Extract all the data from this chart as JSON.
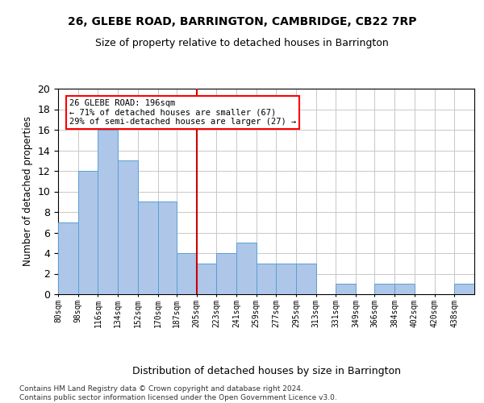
{
  "title_line1": "26, GLEBE ROAD, BARRINGTON, CAMBRIDGE, CB22 7RP",
  "title_line2": "Size of property relative to detached houses in Barrington",
  "xlabel": "Distribution of detached houses by size in Barrington",
  "ylabel": "Number of detached properties",
  "footnote": "Contains HM Land Registry data © Crown copyright and database right 2024.\nContains public sector information licensed under the Open Government Licence v3.0.",
  "bin_labels": [
    "80sqm",
    "98sqm",
    "116sqm",
    "134sqm",
    "152sqm",
    "170sqm",
    "187sqm",
    "205sqm",
    "223sqm",
    "241sqm",
    "259sqm",
    "277sqm",
    "295sqm",
    "313sqm",
    "331sqm",
    "349sqm",
    "366sqm",
    "384sqm",
    "402sqm",
    "420sqm",
    "438sqm"
  ],
  "bar_values": [
    7,
    12,
    16,
    13,
    9,
    9,
    4,
    3,
    4,
    5,
    3,
    3,
    3,
    0,
    1,
    0,
    1,
    1,
    0,
    0,
    1
  ],
  "bar_color": "#aec6e8",
  "bar_edge_color": "#5a9fd4",
  "bin_edges": [
    80,
    98,
    116,
    134,
    152,
    170,
    187,
    205,
    223,
    241,
    259,
    277,
    295,
    313,
    331,
    349,
    366,
    384,
    402,
    420,
    438,
    456
  ],
  "ylim": [
    0,
    20
  ],
  "yticks": [
    0,
    2,
    4,
    6,
    8,
    10,
    12,
    14,
    16,
    18,
    20
  ],
  "annotation_text": "26 GLEBE ROAD: 196sqm\n← 71% of detached houses are smaller (67)\n29% of semi-detached houses are larger (27) →",
  "vline_color": "#cc0000",
  "background_color": "#ffffff",
  "grid_color": "#c8c8c8"
}
